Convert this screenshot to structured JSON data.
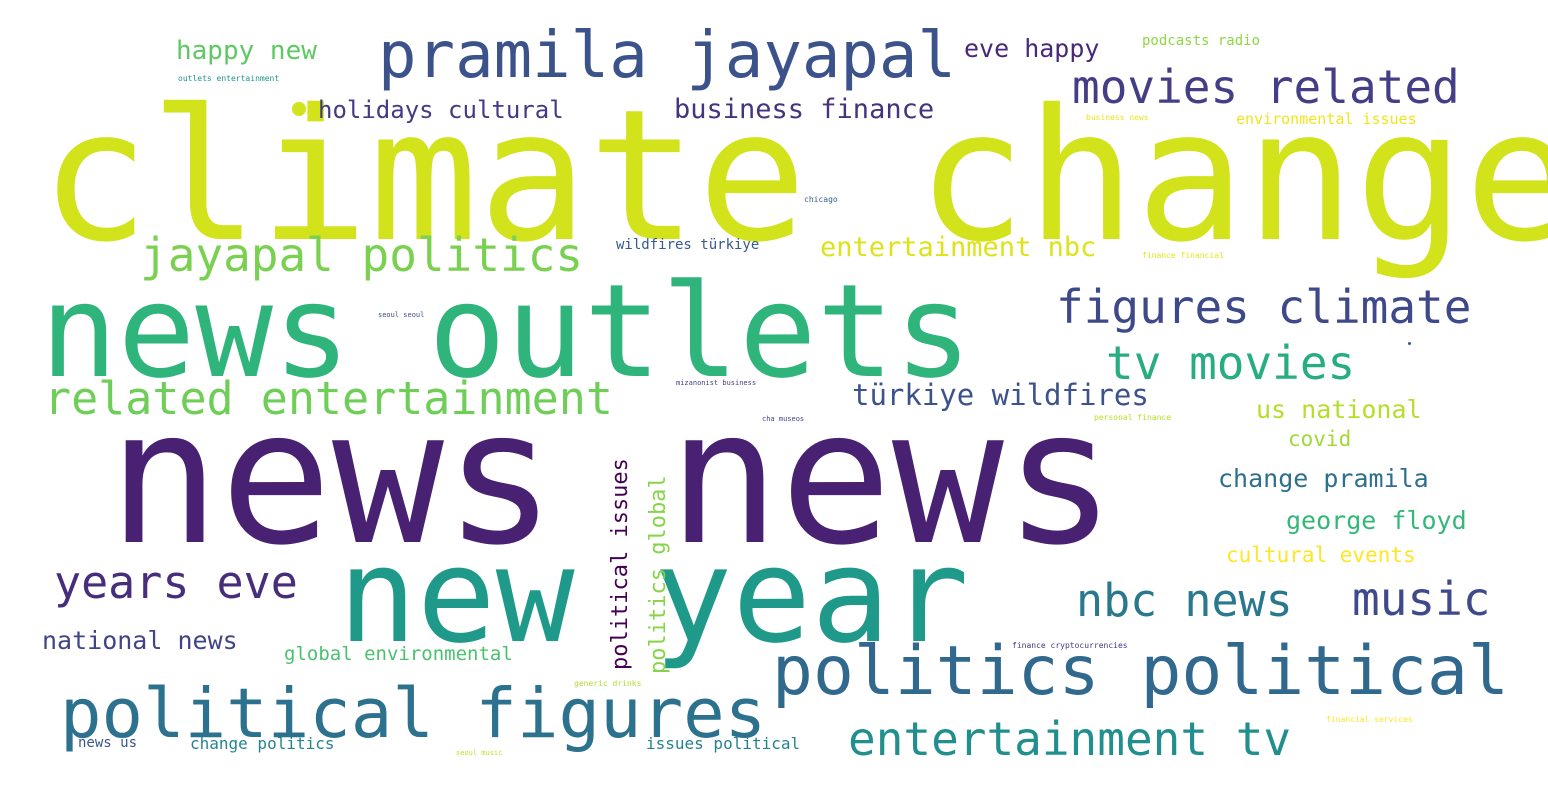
{
  "words": [
    {
      "text": "news news",
      "color": "#482173"
    },
    {
      "text": "climate change",
      "color": "#d2e21b"
    },
    {
      "text": "news outlets",
      "color": "#2fb47c"
    },
    {
      "text": "new year",
      "color": "#1f998a"
    },
    {
      "text": "pramila jayapal",
      "color": "#3b528b"
    },
    {
      "text": "politics political",
      "color": "#31688e"
    },
    {
      "text": "political figures",
      "color": "#2c728e"
    },
    {
      "text": "movies related",
      "color": "#433e85"
    },
    {
      "text": "jayapal politics",
      "color": "#7ad151"
    },
    {
      "text": "figures climate",
      "color": "#3e4989"
    },
    {
      "text": "related entertainment",
      "color": "#6ece58"
    },
    {
      "text": "tv movies",
      "color": "#27ad81"
    },
    {
      "text": "years eve",
      "color": "#472d7b"
    },
    {
      "text": "nbc news",
      "color": "#2a788e"
    },
    {
      "text": "music",
      "color": "#3e4a89"
    },
    {
      "text": "entertainment tv",
      "color": "#218f8d"
    },
    {
      "text": "türkiye wildfires",
      "color": "#3b528b"
    },
    {
      "text": "entertainment nbc",
      "color": "#dde318"
    },
    {
      "text": "business finance",
      "color": "#46337e"
    },
    {
      "text": "holidays cultural",
      "color": "#443983"
    },
    {
      "text": "happy new",
      "color": "#5ec962"
    },
    {
      "text": "eve happy",
      "color": "#482878"
    },
    {
      "text": "us national",
      "color": "#b5de2b"
    },
    {
      "text": "covid",
      "color": "#a0da39"
    },
    {
      "text": "change pramila",
      "color": "#2d708e"
    },
    {
      "text": "george floyd",
      "color": "#35b779"
    },
    {
      "text": "cultural events",
      "color": "#fde725"
    },
    {
      "text": "national news",
      "color": "#414487"
    },
    {
      "text": "global environmental",
      "color": "#4ac16d"
    },
    {
      "text": "political issues",
      "color": "#440154"
    },
    {
      "text": "politics global",
      "color": "#86d549"
    },
    {
      "text": "change politics",
      "color": "#25858e"
    },
    {
      "text": "issues political",
      "color": "#26828e"
    },
    {
      "text": "news us",
      "color": "#39568c"
    },
    {
      "text": "wildfires türkiye",
      "color": "#38598c"
    },
    {
      "text": "podcasts radio",
      "color": "#8fd744"
    },
    {
      "text": "environmental issues",
      "color": "#f1e51d"
    },
    {
      "text": "outlets entertainment",
      "color": "#1f958b"
    },
    {
      "text": "business news",
      "color": "#ece51b"
    },
    {
      "text": "chicago",
      "color": "#365c8d"
    },
    {
      "text": "finance financial",
      "color": "#e5e419"
    },
    {
      "text": "seoul seoul",
      "color": "#3e4c8a"
    },
    {
      "text": "mizanonist business",
      "color": "#424086"
    },
    {
      "text": "cha museos",
      "color": "#3f4788"
    },
    {
      "text": "personal finance",
      "color": "#b8de29"
    },
    {
      "text": "finance cryptocurrencies",
      "color": "#453781"
    },
    {
      "text": "generic drinks",
      "color": "#b0dd2f"
    },
    {
      "text": "seoul music",
      "color": "#c2df23"
    },
    {
      "text": "financial services",
      "color": "#fde725"
    }
  ]
}
